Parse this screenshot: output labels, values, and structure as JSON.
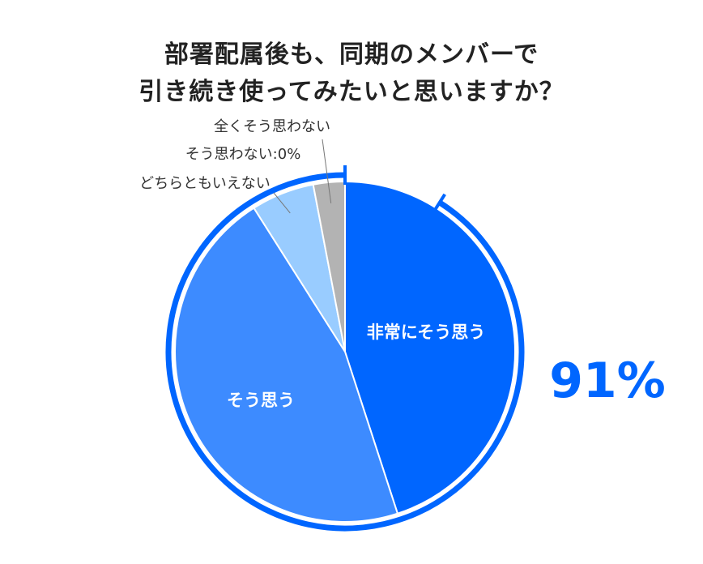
{
  "chart_data": {
    "type": "pie",
    "title_line1": "部署配属後も、同期のメンバーで",
    "title_line2": "引き続き使ってみたいと思いますか？",
    "slices": [
      {
        "label": "非常にそう思う",
        "value": 45,
        "color": "#0066ff"
      },
      {
        "label": "そう思う",
        "value": 46,
        "color": "#3d8bff"
      },
      {
        "label": "どちらともいえない",
        "value": 6,
        "color": "#99ccff"
      },
      {
        "label": "そう思わない:0%",
        "value": 0,
        "color": "#cccccc"
      },
      {
        "label": "全くそう思わない",
        "value": 3,
        "color": "#b3b3b3"
      }
    ],
    "highlight": {
      "text": "91%",
      "value": 91,
      "color": "#0066ff"
    }
  }
}
